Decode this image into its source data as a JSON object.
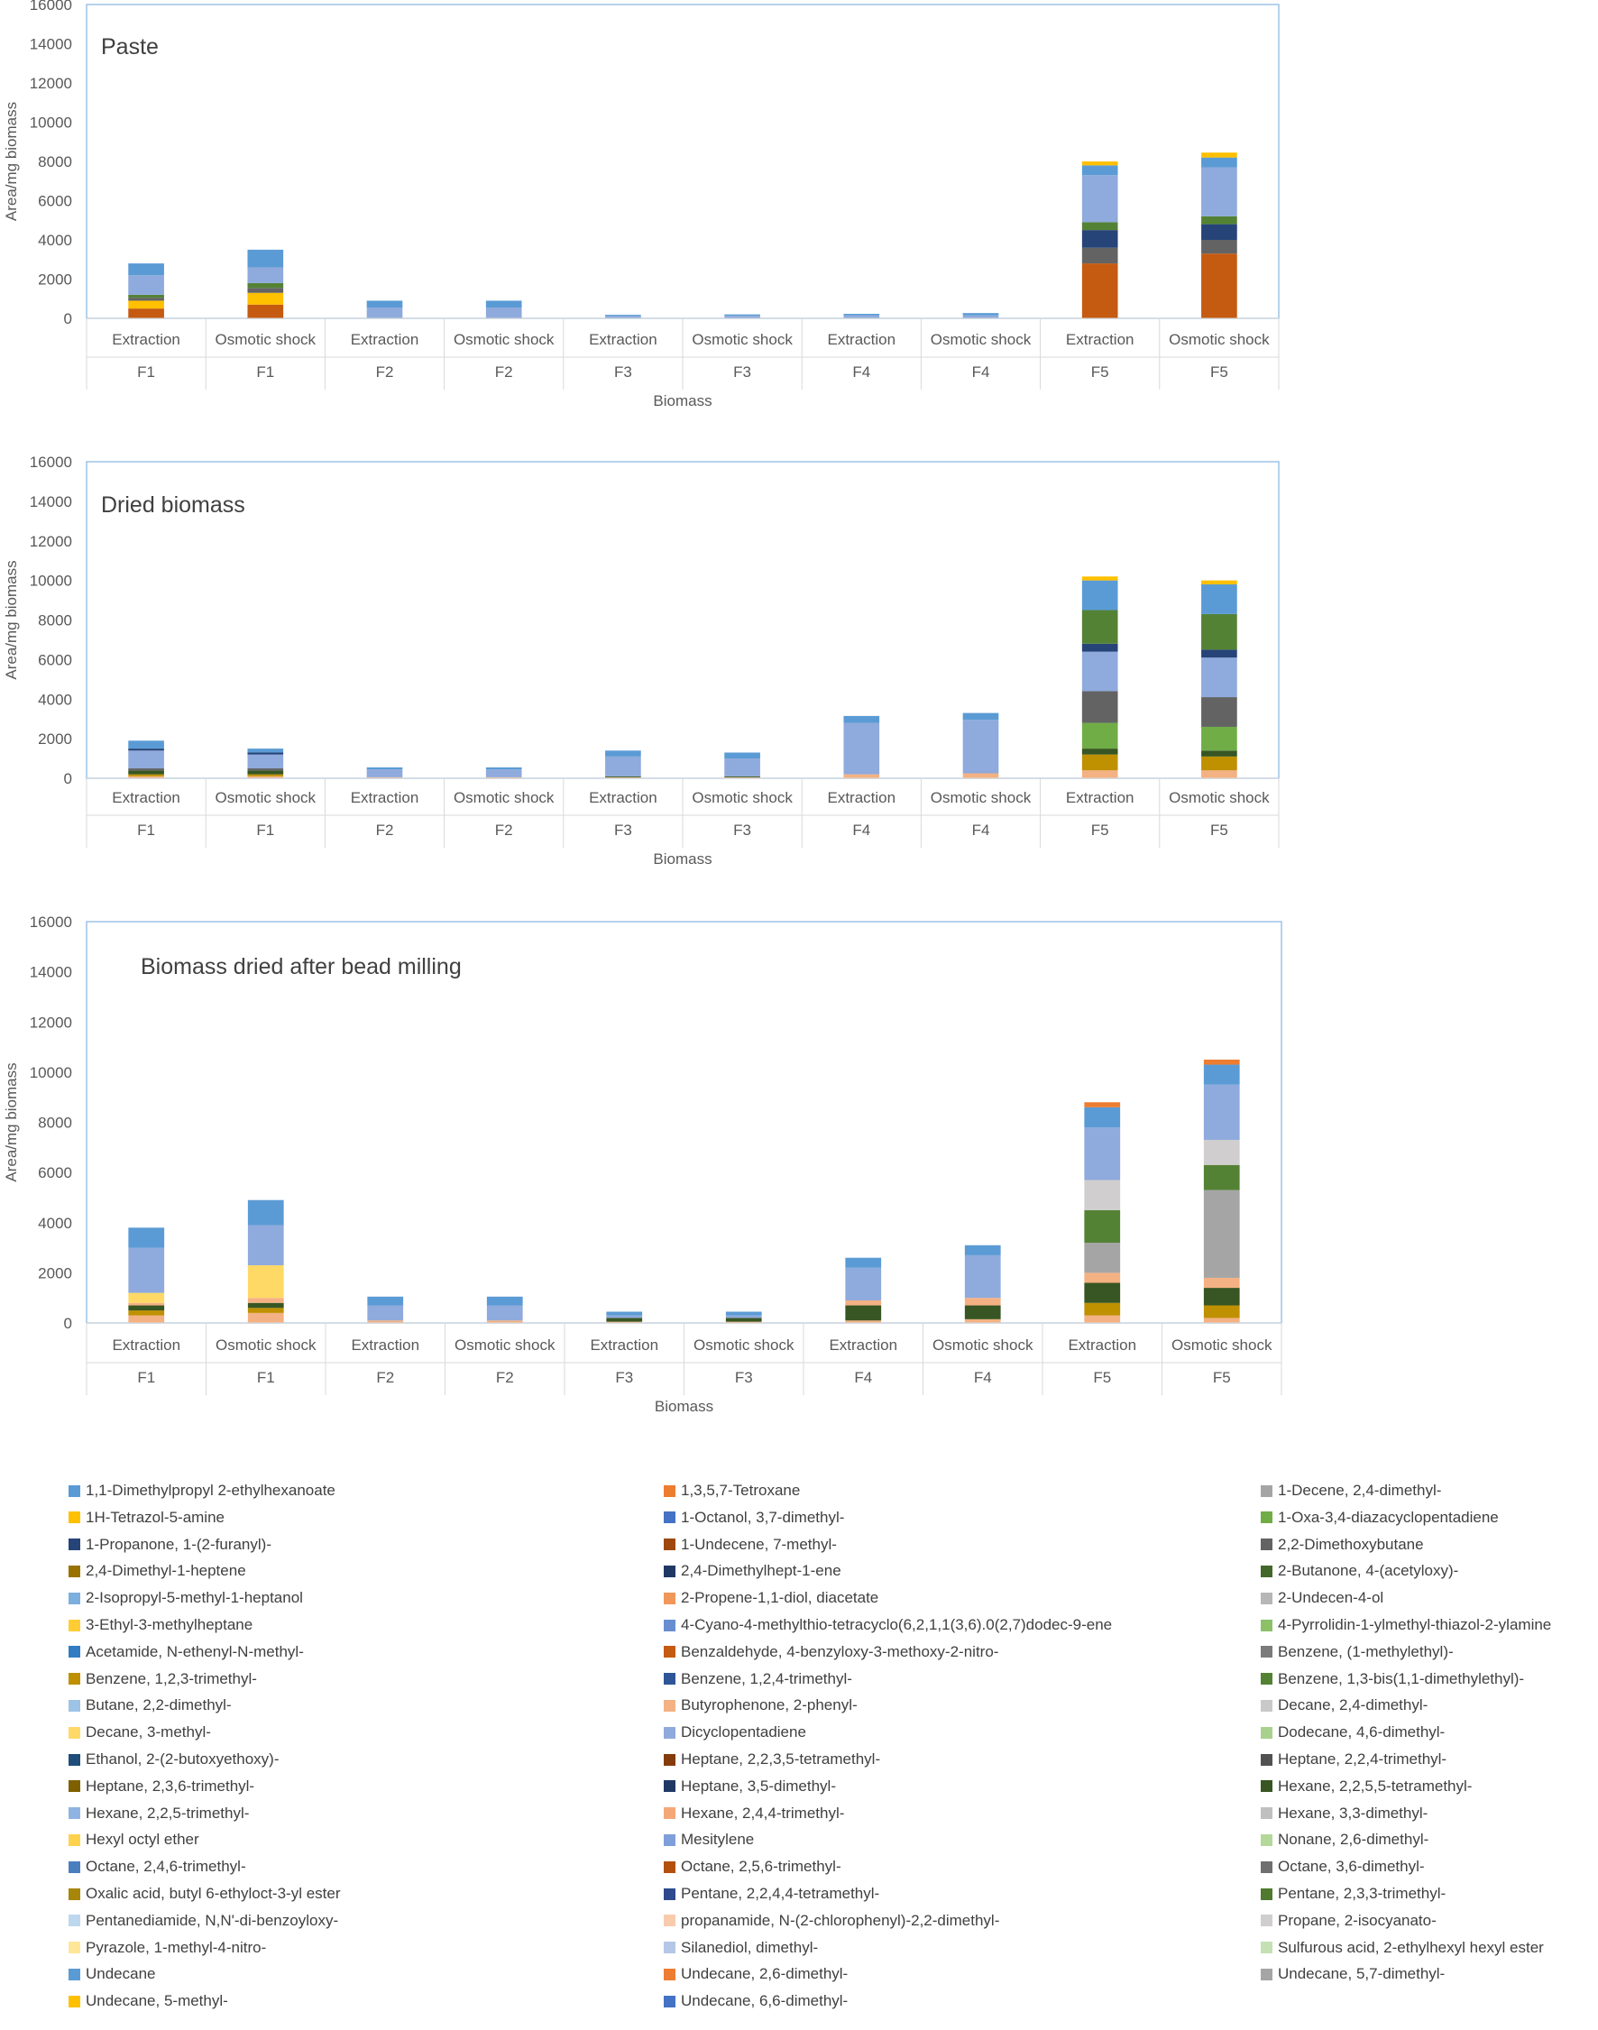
{
  "chart_data": [
    {
      "type": "bar",
      "stacked": true,
      "title": "Paste",
      "xlabel": "Biomass",
      "ylabel": "Area/mg biomass",
      "ylim": [
        0,
        16000
      ],
      "yticks": [
        0,
        2000,
        4000,
        6000,
        8000,
        10000,
        12000,
        14000,
        16000
      ],
      "groups": [
        "F1",
        "F2",
        "F3",
        "F4",
        "F5"
      ],
      "categories": [
        "Extraction",
        "Osmotic shock",
        "Extraction",
        "Osmotic shock",
        "Extraction",
        "Osmotic shock",
        "Extraction",
        "Osmotic shock",
        "Extraction",
        "Osmotic shock"
      ],
      "series": [
        {
          "name": "1,3,5,7-Tetroxane",
          "color": "#c55a11",
          "values": [
            500,
            700,
            0,
            0,
            0,
            0,
            0,
            0,
            0,
            0
          ]
        },
        {
          "name": "Benzaldehyde, 4-benzyloxy-3-methoxy-2-nitro-",
          "color": "#c55a11",
          "values": [
            0,
            0,
            0,
            0,
            0,
            0,
            0,
            0,
            2800,
            3300
          ]
        },
        {
          "name": "1H-Tetrazol-5-amine",
          "color": "#ffc000",
          "values": [
            400,
            600,
            0,
            0,
            0,
            0,
            0,
            0,
            0,
            0
          ]
        },
        {
          "name": "Octane, 3,6-dimethyl-",
          "color": "#636363",
          "values": [
            150,
            250,
            0,
            0,
            0,
            0,
            0,
            0,
            800,
            700
          ]
        },
        {
          "name": "Heptane, 3,5-dimethyl-",
          "color": "#264478",
          "values": [
            0,
            0,
            0,
            0,
            0,
            0,
            0,
            0,
            900,
            800
          ]
        },
        {
          "name": "Pentane, 2,3,3-trimethyl-",
          "color": "#548235",
          "values": [
            150,
            250,
            0,
            0,
            0,
            0,
            0,
            0,
            400,
            400
          ]
        },
        {
          "name": "Silanediol, dimethyl-",
          "color": "#8faadc",
          "values": [
            1000,
            800,
            550,
            550,
            120,
            130,
            150,
            150,
            2400,
            2500
          ]
        },
        {
          "name": "1,1-Dimethylpropyl 2-ethylhexanoate",
          "color": "#5b9bd5",
          "values": [
            600,
            900,
            350,
            350,
            60,
            70,
            80,
            120,
            500,
            500
          ]
        },
        {
          "name": "Undecane, 5-methyl-",
          "color": "#ffc000",
          "values": [
            0,
            0,
            0,
            0,
            0,
            0,
            0,
            0,
            200,
            250
          ]
        }
      ]
    },
    {
      "type": "bar",
      "stacked": true,
      "title": "Dried biomass",
      "xlabel": "Biomass",
      "ylabel": "Area/mg biomass",
      "ylim": [
        0,
        16000
      ],
      "yticks": [
        0,
        2000,
        4000,
        6000,
        8000,
        10000,
        12000,
        14000,
        16000
      ],
      "groups": [
        "F1",
        "F2",
        "F3",
        "F4",
        "F5"
      ],
      "categories": [
        "Extraction",
        "Osmotic shock",
        "Extraction",
        "Osmotic shock",
        "Extraction",
        "Osmotic shock",
        "Extraction",
        "Osmotic shock",
        "Extraction",
        "Osmotic shock"
      ],
      "series": [
        {
          "name": "2-Propene-1,1-diol, diacetate",
          "color": "#f4b183",
          "values": [
            100,
            100,
            50,
            50,
            50,
            50,
            200,
            250,
            400,
            400
          ]
        },
        {
          "name": "Oxalic acid, butyl 6-ethyloct-3-yl ester",
          "color": "#bf9000",
          "values": [
            100,
            100,
            0,
            0,
            0,
            0,
            0,
            0,
            800,
            700
          ]
        },
        {
          "name": "Hexane, 2,2,5,5-tetramethyl-",
          "color": "#375623",
          "values": [
            200,
            200,
            0,
            0,
            50,
            50,
            0,
            0,
            300,
            300
          ]
        },
        {
          "name": "Benzene, 1,3-bis(1,1-dimethylethyl)-",
          "color": "#70ad47",
          "values": [
            0,
            0,
            0,
            0,
            0,
            0,
            0,
            0,
            1300,
            1200
          ]
        },
        {
          "name": "Octane, 3,6-dimethyl-",
          "color": "#636363",
          "values": [
            100,
            100,
            0,
            0,
            0,
            0,
            0,
            0,
            1600,
            1500
          ]
        },
        {
          "name": "Silanediol, dimethyl-",
          "color": "#8faadc",
          "values": [
            900,
            700,
            400,
            400,
            1000,
            900,
            2600,
            2700,
            2000,
            2000
          ]
        },
        {
          "name": "Heptane, 3,5-dimethyl-",
          "color": "#264478",
          "values": [
            100,
            100,
            0,
            0,
            0,
            0,
            0,
            0,
            400,
            400
          ]
        },
        {
          "name": "Pentane, 2,3,3-trimethyl-",
          "color": "#548235",
          "values": [
            0,
            0,
            0,
            0,
            0,
            0,
            0,
            0,
            1700,
            1800
          ]
        },
        {
          "name": "Undecane",
          "color": "#5b9bd5",
          "values": [
            400,
            200,
            100,
            100,
            300,
            300,
            350,
            350,
            1500,
            1500
          ]
        },
        {
          "name": "Undecane, 5-methyl-",
          "color": "#ffc000",
          "values": [
            0,
            0,
            0,
            0,
            0,
            0,
            0,
            0,
            200,
            200
          ]
        }
      ]
    },
    {
      "type": "bar",
      "stacked": true,
      "title": "Biomass dried after bead milling",
      "xlabel": "Biomass",
      "ylabel": "Area/mg biomass",
      "ylim": [
        0,
        16000
      ],
      "yticks": [
        0,
        2000,
        4000,
        6000,
        8000,
        10000,
        12000,
        14000,
        16000
      ],
      "groups": [
        "F1",
        "F2",
        "F3",
        "F4",
        "F5"
      ],
      "categories": [
        "Extraction",
        "Osmotic shock",
        "Extraction",
        "Osmotic shock",
        "Extraction",
        "Osmotic shock",
        "Extraction",
        "Osmotic shock",
        "Extraction",
        "Osmotic shock"
      ],
      "series": [
        {
          "name": "Butyrophenone, 2-phenyl-",
          "color": "#f4b183",
          "values": [
            300,
            400,
            100,
            100,
            50,
            50,
            100,
            150,
            300,
            200
          ]
        },
        {
          "name": "Oxalic acid, butyl 6-ethyloct-3-yl ester",
          "color": "#bf9000",
          "values": [
            200,
            200,
            0,
            0,
            0,
            0,
            0,
            0,
            500,
            500
          ]
        },
        {
          "name": "Hexane, 2,2,5,5-tetramethyl-",
          "color": "#375623",
          "values": [
            200,
            200,
            0,
            0,
            150,
            150,
            600,
            550,
            800,
            700
          ]
        },
        {
          "name": "Hexane, 2,4,4-trimethyl-",
          "color": "#f4b183",
          "values": [
            100,
            200,
            0,
            0,
            0,
            0,
            200,
            300,
            400,
            400
          ]
        },
        {
          "name": "Hexane, 3,3-dimethyl-",
          "color": "#a5a5a5",
          "values": [
            0,
            0,
            0,
            0,
            0,
            0,
            0,
            0,
            1200,
            3500
          ]
        },
        {
          "name": "Hexyl octyl ether",
          "color": "#ffd966",
          "values": [
            400,
            1300,
            0,
            0,
            0,
            0,
            0,
            0,
            0,
            0
          ]
        },
        {
          "name": "Pentane, 2,3,3-trimethyl-",
          "color": "#548235",
          "values": [
            0,
            0,
            0,
            0,
            0,
            0,
            0,
            0,
            1300,
            1000
          ]
        },
        {
          "name": "Propane, 2-isocyanato-",
          "color": "#d0cece",
          "values": [
            0,
            0,
            0,
            0,
            0,
            0,
            0,
            0,
            1200,
            1000
          ]
        },
        {
          "name": "Silanediol, dimethyl-",
          "color": "#8faadc",
          "values": [
            1800,
            1600,
            600,
            600,
            100,
            100,
            1300,
            1700,
            2100,
            2200
          ]
        },
        {
          "name": "1,1-Dimethylpropyl 2-ethylhexanoate",
          "color": "#5b9bd5",
          "values": [
            800,
            1000,
            350,
            350,
            150,
            150,
            400,
            400,
            800,
            800
          ]
        },
        {
          "name": "Undecane, 2,6-dimethyl-",
          "color": "#ed7d31",
          "values": [
            0,
            0,
            0,
            0,
            0,
            0,
            0,
            0,
            200,
            200
          ]
        }
      ]
    }
  ],
  "legend": {
    "items": [
      {
        "label": "1,1-Dimethylpropyl 2-ethylhexanoate",
        "color": "#5b9bd5"
      },
      {
        "label": "1,3,5,7-Tetroxane",
        "color": "#ed7d31"
      },
      {
        "label": "1-Decene, 2,4-dimethyl-",
        "color": "#a5a5a5"
      },
      {
        "label": "1H-Tetrazol-5-amine",
        "color": "#ffc000"
      },
      {
        "label": "1-Octanol, 3,7-dimethyl-",
        "color": "#4472c4"
      },
      {
        "label": "1-Oxa-3,4-diazacyclopentadiene",
        "color": "#70ad47"
      },
      {
        "label": "1-Propanone, 1-(2-furanyl)-",
        "color": "#264478"
      },
      {
        "label": "1-Undecene, 7-methyl-",
        "color": "#9e480e"
      },
      {
        "label": "2,2-Dimethoxybutane",
        "color": "#636363"
      },
      {
        "label": "2,4-Dimethyl-1-heptene",
        "color": "#997300"
      },
      {
        "label": "2,4-Dimethylhept-1-ene",
        "color": "#203864"
      },
      {
        "label": "2-Butanone, 4-(acetyloxy)-",
        "color": "#43682b"
      },
      {
        "label": "2-Isopropyl-5-methyl-1-heptanol",
        "color": "#7cafdd"
      },
      {
        "label": "2-Propene-1,1-diol, diacetate",
        "color": "#f1975a"
      },
      {
        "label": "2-Undecen-4-ol",
        "color": "#b7b7b7"
      },
      {
        "label": "3-Ethyl-3-methylheptane",
        "color": "#ffcd33"
      },
      {
        "label": "4-Cyano-4-methylthio-tetracyclo(6,2,1,1(3,6).0(2,7)dodec-9-ene",
        "color": "#698ed0"
      },
      {
        "label": "4-Pyrrolidin-1-ylmethyl-thiazol-2-ylamine",
        "color": "#8cc168"
      },
      {
        "label": "Acetamide, N-ethenyl-N-methyl-",
        "color": "#327dc2"
      },
      {
        "label": "Benzaldehyde, 4-benzyloxy-3-methoxy-2-nitro-",
        "color": "#c55a11"
      },
      {
        "label": "Benzene, (1-methylethyl)-",
        "color": "#7b7b7b"
      },
      {
        "label": "Benzene, 1,2,3-trimethyl-",
        "color": "#bf9000"
      },
      {
        "label": "Benzene, 1,2,4-trimethyl-",
        "color": "#2f5597"
      },
      {
        "label": "Benzene, 1,3-bis(1,1-dimethylethyl)-",
        "color": "#548235"
      },
      {
        "label": "Butane, 2,2-dimethyl-",
        "color": "#9dc3e6"
      },
      {
        "label": "Butyrophenone, 2-phenyl-",
        "color": "#f4b183"
      },
      {
        "label": "Decane, 2,4-dimethyl-",
        "color": "#c9c9c9"
      },
      {
        "label": "Decane, 3-methyl-",
        "color": "#ffd966"
      },
      {
        "label": "Dicyclopentadiene",
        "color": "#8faadc"
      },
      {
        "label": "Dodecane, 4,6-dimethyl-",
        "color": "#a9d18e"
      },
      {
        "label": "Ethanol, 2-(2-butoxyethoxy)-",
        "color": "#1f4e79"
      },
      {
        "label": "Heptane, 2,2,3,5-tetramethyl-",
        "color": "#843c0c"
      },
      {
        "label": "Heptane, 2,2,4-trimethyl-",
        "color": "#525252"
      },
      {
        "label": "Heptane, 2,3,6-trimethyl-",
        "color": "#7f6000"
      },
      {
        "label": "Heptane, 3,5-dimethyl-",
        "color": "#203864"
      },
      {
        "label": "Hexane, 2,2,5,5-tetramethyl-",
        "color": "#375623"
      },
      {
        "label": "Hexane, 2,2,5-trimethyl-",
        "color": "#8fb4e3"
      },
      {
        "label": "Hexane, 2,4,4-trimethyl-",
        "color": "#f4a879"
      },
      {
        "label": "Hexane, 3,3-dimethyl-",
        "color": "#c0c0c0"
      },
      {
        "label": "Hexyl octyl ether",
        "color": "#ffd24d"
      },
      {
        "label": "Mesitylene",
        "color": "#7f9fda"
      },
      {
        "label": "Nonane, 2,6-dimethyl-",
        "color": "#b4d79a"
      },
      {
        "label": "Octane, 2,4,6-trimethyl-",
        "color": "#4a7fbf"
      },
      {
        "label": "Octane, 2,5,6-trimethyl-",
        "color": "#b35010"
      },
      {
        "label": "Octane, 3,6-dimethyl-",
        "color": "#6f6f6f"
      },
      {
        "label": "Oxalic acid, butyl 6-ethyloct-3-yl ester",
        "color": "#a8860a"
      },
      {
        "label": "Pentane, 2,2,4,4-tetramethyl-",
        "color": "#2e4a8c"
      },
      {
        "label": "Pentane, 2,3,3-trimethyl-",
        "color": "#4f7a30"
      },
      {
        "label": "Pentanediamide, N,N'-di-benzoyloxy-",
        "color": "#bdd7ee"
      },
      {
        "label": "propanamide, N-(2-chlorophenyl)-2,2-dimethyl-",
        "color": "#f8cbad"
      },
      {
        "label": "Propane, 2-isocyanato-",
        "color": "#d0cece"
      },
      {
        "label": "Pyrazole, 1-methyl-4-nitro-",
        "color": "#ffe699"
      },
      {
        "label": "Silanediol, dimethyl-",
        "color": "#b4c7e7"
      },
      {
        "label": "Sulfurous acid, 2-ethylhexyl hexyl ester",
        "color": "#c5e0b4"
      },
      {
        "label": "Undecane",
        "color": "#5b9bd5"
      },
      {
        "label": "Undecane, 2,6-dimethyl-",
        "color": "#ed7d31"
      },
      {
        "label": "Undecane, 5,7-dimethyl-",
        "color": "#a5a5a5"
      },
      {
        "label": "Undecane, 5-methyl-",
        "color": "#ffc000"
      },
      {
        "label": "Undecane, 6,6-dimethyl-",
        "color": "#4472c4"
      }
    ]
  }
}
